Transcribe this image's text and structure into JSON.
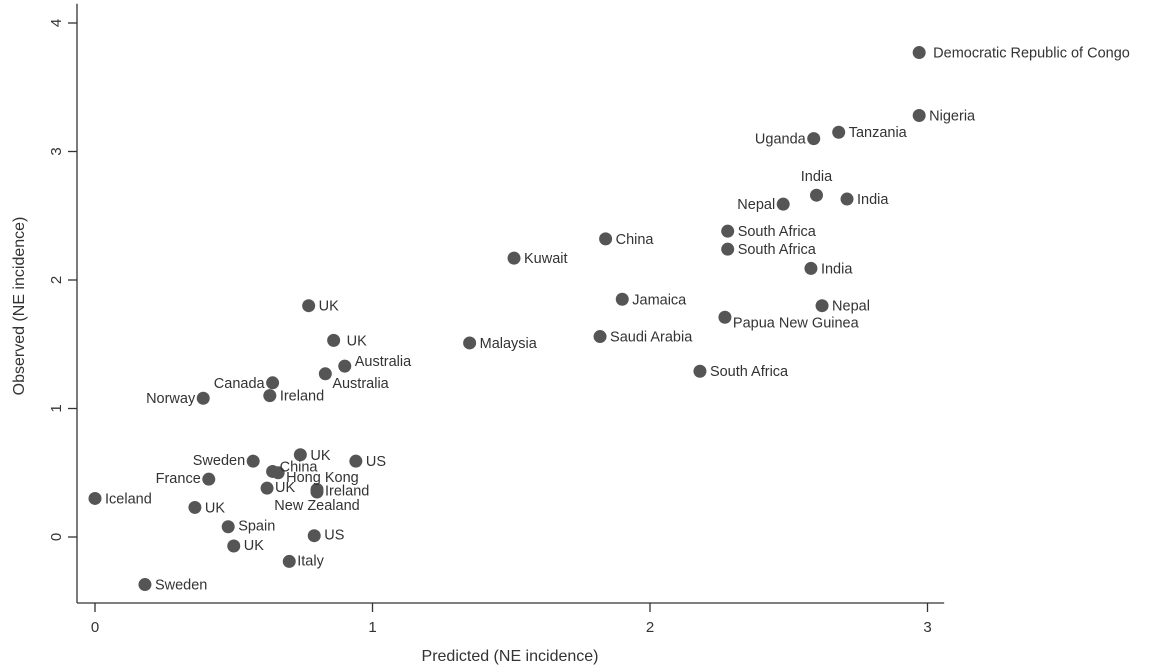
{
  "chart_data": {
    "type": "scatter",
    "xlabel": "Predicted (NE incidence)",
    "ylabel": "Observed (NE incidence)",
    "xlim": [
      -0.06,
      3.06
    ],
    "ylim": [
      -0.52,
      4.15
    ],
    "xticks": [
      0,
      1,
      2,
      3
    ],
    "yticks": [
      0,
      1,
      2,
      3,
      4
    ],
    "xtick_labels": [
      "0",
      "1",
      "2",
      "3"
    ],
    "ytick_labels": [
      "0",
      "1",
      "2",
      "3",
      "4"
    ],
    "grid": false,
    "marker_color": "#555555",
    "points": [
      {
        "label": "Democratic Republic of Congo",
        "x": 2.97,
        "y": 3.77
      },
      {
        "label": "Nigeria",
        "x": 2.97,
        "y": 3.28
      },
      {
        "label": "Uganda",
        "x": 2.59,
        "y": 3.1
      },
      {
        "label": "Tanzania",
        "x": 2.68,
        "y": 3.15
      },
      {
        "label": "India",
        "x": 2.6,
        "y": 2.66
      },
      {
        "label": "India",
        "x": 2.71,
        "y": 2.63
      },
      {
        "label": "Nepal",
        "x": 2.48,
        "y": 2.59
      },
      {
        "label": "South Africa",
        "x": 2.28,
        "y": 2.38
      },
      {
        "label": "South Africa",
        "x": 2.28,
        "y": 2.24
      },
      {
        "label": "India",
        "x": 2.58,
        "y": 2.09
      },
      {
        "label": "Nepal",
        "x": 2.62,
        "y": 1.8
      },
      {
        "label": "Papua New Guinea",
        "x": 2.27,
        "y": 1.71
      },
      {
        "label": "South Africa",
        "x": 2.18,
        "y": 1.29
      },
      {
        "label": "China",
        "x": 1.84,
        "y": 2.32
      },
      {
        "label": "Kuwait",
        "x": 1.51,
        "y": 2.17
      },
      {
        "label": "Jamaica",
        "x": 1.9,
        "y": 1.85
      },
      {
        "label": "Saudi Arabia",
        "x": 1.82,
        "y": 1.56
      },
      {
        "label": "Malaysia",
        "x": 1.35,
        "y": 1.51
      },
      {
        "label": "UK",
        "x": 0.77,
        "y": 1.8
      },
      {
        "label": "UK",
        "x": 0.86,
        "y": 1.53
      },
      {
        "label": "Australia",
        "x": 0.9,
        "y": 1.33
      },
      {
        "label": "Australia",
        "x": 0.83,
        "y": 1.27
      },
      {
        "label": "Canada",
        "x": 0.64,
        "y": 1.2
      },
      {
        "label": "Ireland",
        "x": 0.63,
        "y": 1.1
      },
      {
        "label": "Norway",
        "x": 0.39,
        "y": 1.08
      },
      {
        "label": "Sweden",
        "x": 0.57,
        "y": 0.59
      },
      {
        "label": "UK",
        "x": 0.74,
        "y": 0.64
      },
      {
        "label": "US",
        "x": 0.94,
        "y": 0.59
      },
      {
        "label": "China",
        "x": 0.64,
        "y": 0.51
      },
      {
        "label": "Hong Kong",
        "x": 0.66,
        "y": 0.5
      },
      {
        "label": "France",
        "x": 0.41,
        "y": 0.45
      },
      {
        "label": "UK",
        "x": 0.62,
        "y": 0.38
      },
      {
        "label": "Ireland",
        "x": 0.8,
        "y": 0.37
      },
      {
        "label": "New Zealand",
        "x": 0.8,
        "y": 0.35
      },
      {
        "label": "Iceland",
        "x": 0.0,
        "y": 0.3
      },
      {
        "label": "UK",
        "x": 0.36,
        "y": 0.23
      },
      {
        "label": "Spain",
        "x": 0.48,
        "y": 0.08
      },
      {
        "label": "US",
        "x": 0.79,
        "y": 0.01
      },
      {
        "label": "UK",
        "x": 0.5,
        "y": -0.07
      },
      {
        "label": "Italy",
        "x": 0.7,
        "y": -0.19
      },
      {
        "label": "Sweden",
        "x": 0.18,
        "y": -0.37
      }
    ]
  }
}
